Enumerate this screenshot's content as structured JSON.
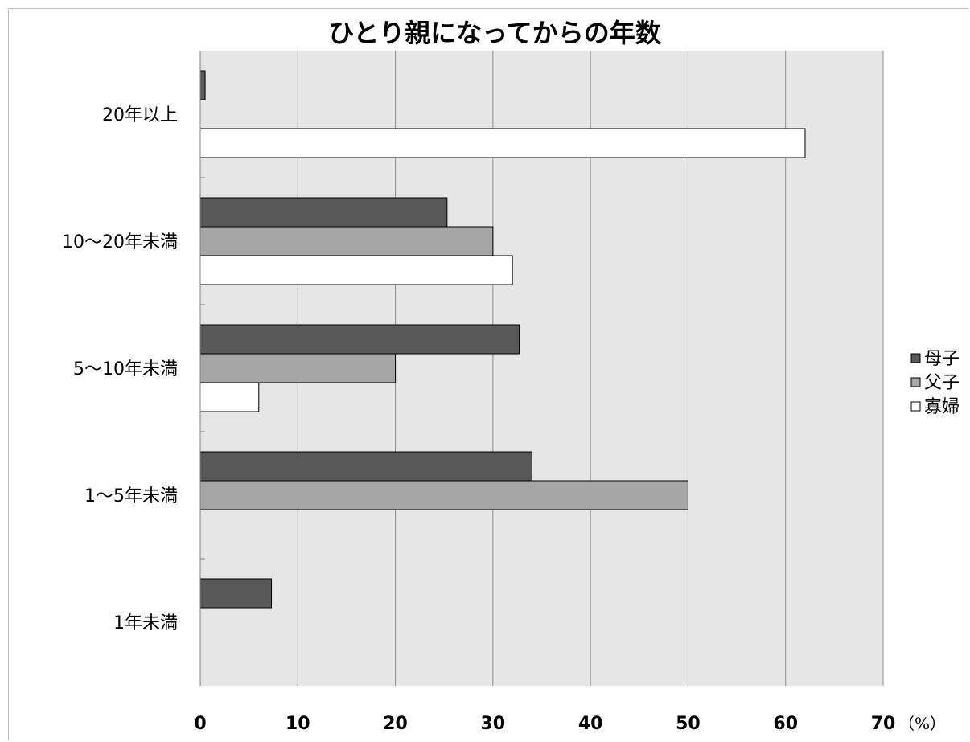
{
  "chart_data": {
    "type": "bar",
    "orientation": "horizontal",
    "title": "ひとり親になってからの年数",
    "categories": [
      "20年以上",
      "10～20年未満",
      "5～10年未満",
      "1～5年未満",
      "1年未満"
    ],
    "series": [
      {
        "name": "母子",
        "color": "#595959",
        "values": [
          0.5,
          25.3,
          32.7,
          34.0,
          7.3
        ]
      },
      {
        "name": "父子",
        "color": "#a6a6a6",
        "values": [
          0,
          30.0,
          20.0,
          50.0,
          0
        ]
      },
      {
        "name": "寡婦",
        "color": "#ffffff",
        "values": [
          62.0,
          32.0,
          6.0,
          0,
          0
        ]
      }
    ],
    "xlim": [
      0,
      70
    ],
    "xticks": [
      "0",
      "10",
      "20",
      "30",
      "40",
      "50",
      "60",
      "70"
    ],
    "x_unit": "（%）",
    "grid": "vertical",
    "legend_position": "right"
  }
}
